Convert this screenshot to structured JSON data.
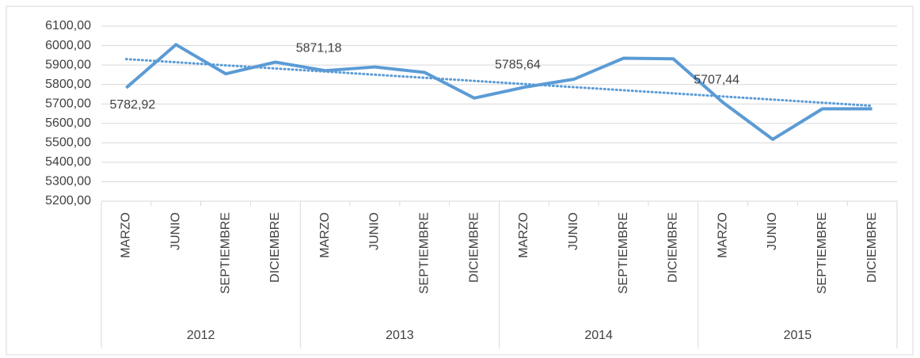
{
  "chart_data": {
    "type": "line",
    "categories": [
      "MARZO",
      "JUNIO",
      "SEPTIEMBRE",
      "DICIEMBRE",
      "MARZO",
      "JUNIO",
      "SEPTIEMBRE",
      "DICIEMBRE",
      "MARZO",
      "JUNIO",
      "SEPTIEMBRE",
      "DICIEMBRE",
      "MARZO",
      "JUNIO",
      "SEPTIEMBRE",
      "DICIEMBRE"
    ],
    "years": [
      "2012",
      "2013",
      "2014",
      "2015"
    ],
    "values": [
      5782.92,
      6005,
      5855,
      5915,
      5871.18,
      5890,
      5862,
      5730,
      5785.64,
      5827,
      5935,
      5932,
      5707.44,
      5518,
      5675,
      5675
    ],
    "value_labels": [
      "5782,92",
      null,
      null,
      null,
      "5871,18",
      null,
      null,
      null,
      "5785,64",
      null,
      null,
      null,
      "5707,44",
      null,
      null,
      null
    ],
    "color": "#5b9bd5",
    "trendline": true,
    "ylim": [
      5200,
      6100
    ],
    "yticks": [
      {
        "value": 5200,
        "label": "5200,00"
      },
      {
        "value": 5300,
        "label": "5300,00"
      },
      {
        "value": 5400,
        "label": "5400,00"
      },
      {
        "value": 5500,
        "label": "5500,00"
      },
      {
        "value": 5600,
        "label": "5600,00"
      },
      {
        "value": 5700,
        "label": "5700,00"
      },
      {
        "value": 5800,
        "label": "5800,00"
      },
      {
        "value": 5900,
        "label": "5900,00"
      },
      {
        "value": 6000,
        "label": "6000,00"
      },
      {
        "value": 6100,
        "label": "6100,00"
      }
    ],
    "grid": true
  }
}
